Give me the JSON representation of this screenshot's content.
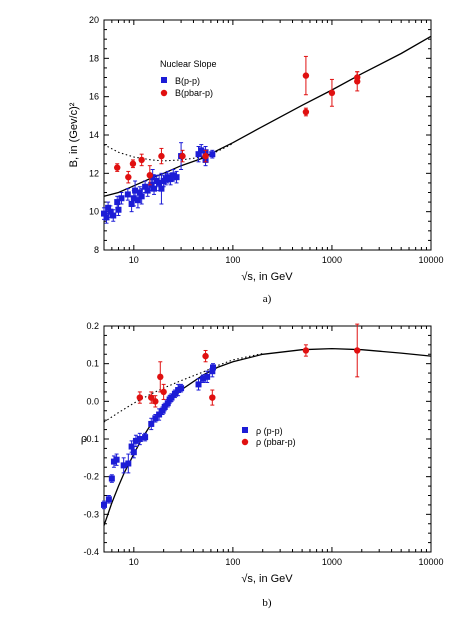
{
  "chart_data": [
    {
      "type": "scatter",
      "panel_caption": "a)",
      "xlabel": "√s, in GeV",
      "ylabel": "B, in (Gev/c)²",
      "xscale": "log",
      "xlim": [
        5,
        10000
      ],
      "ylim": [
        8,
        20
      ],
      "x_tick_labels": [
        "10",
        "100",
        "1000",
        "10000"
      ],
      "y_tick_labels": [
        "8",
        "10",
        "12",
        "14",
        "16",
        "18",
        "20"
      ],
      "legend": {
        "title": "Nuclear Slope",
        "placement": "upper-left"
      },
      "series": [
        {
          "name": "B(p-p)",
          "marker": "square",
          "color": "#1c1cd6",
          "points": [
            {
              "x": 5.0,
              "y": 9.9,
              "err": 0.3
            },
            {
              "x": 5.3,
              "y": 9.7,
              "err": 0.3
            },
            {
              "x": 5.5,
              "y": 10.2,
              "err": 0.3
            },
            {
              "x": 5.8,
              "y": 10.0,
              "err": 0.3
            },
            {
              "x": 6.2,
              "y": 9.8,
              "err": 0.3
            },
            {
              "x": 6.8,
              "y": 10.5,
              "err": 0.3
            },
            {
              "x": 7.0,
              "y": 10.1,
              "err": 0.3
            },
            {
              "x": 7.5,
              "y": 10.7,
              "err": 0.3
            },
            {
              "x": 8.7,
              "y": 10.9,
              "err": 0.3
            },
            {
              "x": 9.5,
              "y": 10.4,
              "err": 0.4
            },
            {
              "x": 10.0,
              "y": 10.7,
              "err": 0.4
            },
            {
              "x": 10.3,
              "y": 11.1,
              "err": 0.5
            },
            {
              "x": 11.0,
              "y": 10.6,
              "err": 0.4
            },
            {
              "x": 11.5,
              "y": 11.0,
              "err": 0.3
            },
            {
              "x": 12.0,
              "y": 10.8,
              "err": 0.4
            },
            {
              "x": 13.0,
              "y": 11.3,
              "err": 0.3
            },
            {
              "x": 13.8,
              "y": 11.1,
              "err": 0.3
            },
            {
              "x": 15.0,
              "y": 11.4,
              "err": 0.3
            },
            {
              "x": 15.5,
              "y": 11.8,
              "err": 0.4
            },
            {
              "x": 16.0,
              "y": 11.2,
              "err": 0.3
            },
            {
              "x": 17.0,
              "y": 11.6,
              "err": 0.3
            },
            {
              "x": 18.0,
              "y": 11.5,
              "err": 0.4
            },
            {
              "x": 19.0,
              "y": 11.2,
              "err": 0.8
            },
            {
              "x": 20.0,
              "y": 11.6,
              "err": 0.3
            },
            {
              "x": 21.0,
              "y": 11.7,
              "err": 0.3
            },
            {
              "x": 22.0,
              "y": 11.8,
              "err": 0.3
            },
            {
              "x": 23.5,
              "y": 11.7,
              "err": 0.3
            },
            {
              "x": 25.0,
              "y": 11.9,
              "err": 0.3
            },
            {
              "x": 27.0,
              "y": 11.8,
              "err": 0.3
            },
            {
              "x": 30.0,
              "y": 12.9,
              "err": 0.7
            },
            {
              "x": 45.0,
              "y": 13.0,
              "err": 0.4
            },
            {
              "x": 48.0,
              "y": 13.2,
              "err": 0.3
            },
            {
              "x": 53.0,
              "y": 13.1,
              "err": 0.3
            },
            {
              "x": 53.0,
              "y": 12.7,
              "err": 0.3
            },
            {
              "x": 62.0,
              "y": 13.0,
              "err": 0.2
            }
          ]
        },
        {
          "name": "B(pbar-p)",
          "marker": "circle",
          "color": "#e01010",
          "points": [
            {
              "x": 6.8,
              "y": 12.3,
              "err": 0.2
            },
            {
              "x": 8.8,
              "y": 11.8,
              "err": 0.3
            },
            {
              "x": 9.8,
              "y": 12.5,
              "err": 0.2
            },
            {
              "x": 12.0,
              "y": 12.7,
              "err": 0.3
            },
            {
              "x": 14.5,
              "y": 11.9,
              "err": 0.5
            },
            {
              "x": 19.0,
              "y": 12.9,
              "err": 0.4
            },
            {
              "x": 31.0,
              "y": 12.9,
              "err": 0.3
            },
            {
              "x": 53.0,
              "y": 12.9,
              "err": 0.3
            },
            {
              "x": 546.0,
              "y": 17.1,
              "err": 1.0
            },
            {
              "x": 546.0,
              "y": 15.2,
              "err": 0.2
            },
            {
              "x": 1000.0,
              "y": 16.2,
              "err": 0.7
            },
            {
              "x": 1800.0,
              "y": 16.8,
              "err": 0.5
            },
            {
              "x": 1800.0,
              "y": 17.0,
              "err": 0.3
            }
          ]
        }
      ],
      "curves": [
        {
          "style": "solid",
          "points": [
            [
              5,
              10.8
            ],
            [
              7,
              11.0
            ],
            [
              10,
              11.35
            ],
            [
              15,
              11.75
            ],
            [
              20,
              12.0
            ],
            [
              30,
              12.4
            ],
            [
              50,
              12.8
            ],
            [
              70,
              13.2
            ],
            [
              100,
              13.6
            ],
            [
              200,
              14.45
            ],
            [
              500,
              15.55
            ],
            [
              1000,
              16.35
            ],
            [
              2000,
              17.2
            ],
            [
              5000,
              18.25
            ],
            [
              10000,
              19.15
            ]
          ]
        },
        {
          "style": "dotted",
          "points": [
            [
              5,
              13.5
            ],
            [
              7,
              13.1
            ],
            [
              10,
              12.85
            ],
            [
              15,
              12.7
            ],
            [
              20,
              12.65
            ],
            [
              30,
              12.7
            ],
            [
              50,
              12.85
            ],
            [
              70,
              13.15
            ],
            [
              100,
              13.55
            ]
          ]
        }
      ]
    },
    {
      "type": "scatter",
      "panel_caption": "b)",
      "xlabel": "√s, in GeV",
      "ylabel": "ρ",
      "xscale": "log",
      "xlim": [
        5,
        10000
      ],
      "ylim": [
        -0.4,
        0.2
      ],
      "x_tick_labels": [
        "10",
        "100",
        "1000",
        "10000"
      ],
      "y_tick_labels": [
        "-0.4",
        "-0.3",
        "-0.2",
        "-0.1",
        "0.0",
        "0.1",
        "0.2"
      ],
      "legend": {
        "placement": "center-right"
      },
      "series": [
        {
          "name": "ρ (p-p)",
          "marker": "square",
          "color": "#1c1cd6",
          "points": [
            {
              "x": 5.0,
              "y": -0.275,
              "err": 0.01
            },
            {
              "x": 5.6,
              "y": -0.26,
              "err": 0.01
            },
            {
              "x": 6.0,
              "y": -0.205,
              "err": 0.01
            },
            {
              "x": 6.3,
              "y": -0.16,
              "err": 0.015
            },
            {
              "x": 6.7,
              "y": -0.155,
              "err": 0.015
            },
            {
              "x": 7.9,
              "y": -0.17,
              "err": 0.02
            },
            {
              "x": 8.8,
              "y": -0.165,
              "err": 0.025
            },
            {
              "x": 9.5,
              "y": -0.12,
              "err": 0.015
            },
            {
              "x": 10.0,
              "y": -0.135,
              "err": 0.015
            },
            {
              "x": 10.5,
              "y": -0.105,
              "err": 0.015
            },
            {
              "x": 11.5,
              "y": -0.1,
              "err": 0.015
            },
            {
              "x": 13.0,
              "y": -0.095,
              "err": 0.01
            },
            {
              "x": 15.0,
              "y": -0.06,
              "err": 0.015
            },
            {
              "x": 16.5,
              "y": -0.045,
              "err": 0.01
            },
            {
              "x": 18.0,
              "y": -0.035,
              "err": 0.015
            },
            {
              "x": 19.5,
              "y": -0.025,
              "err": 0.01
            },
            {
              "x": 20.5,
              "y": -0.015,
              "err": 0.01
            },
            {
              "x": 22.0,
              "y": -0.005,
              "err": 0.01
            },
            {
              "x": 23.0,
              "y": 0.005,
              "err": 0.01
            },
            {
              "x": 24.0,
              "y": 0.01,
              "err": 0.01
            },
            {
              "x": 26.0,
              "y": 0.02,
              "err": 0.01
            },
            {
              "x": 28.0,
              "y": 0.03,
              "err": 0.015
            },
            {
              "x": 30.0,
              "y": 0.035,
              "err": 0.01
            },
            {
              "x": 45.0,
              "y": 0.045,
              "err": 0.015
            },
            {
              "x": 50.0,
              "y": 0.06,
              "err": 0.01
            },
            {
              "x": 55.0,
              "y": 0.065,
              "err": 0.015
            },
            {
              "x": 62.0,
              "y": 0.08,
              "err": 0.015
            },
            {
              "x": 63.0,
              "y": 0.09,
              "err": 0.01
            }
          ]
        },
        {
          "name": "ρ (pbar-p)",
          "marker": "circle",
          "color": "#e01010",
          "points": [
            {
              "x": 11.5,
              "y": 0.01,
              "err": 0.015
            },
            {
              "x": 15.0,
              "y": 0.01,
              "err": 0.015
            },
            {
              "x": 16.5,
              "y": 0.0,
              "err": 0.015
            },
            {
              "x": 18.5,
              "y": 0.065,
              "err": 0.04
            },
            {
              "x": 20.0,
              "y": 0.025,
              "err": 0.02
            },
            {
              "x": 53.0,
              "y": 0.12,
              "err": 0.015
            },
            {
              "x": 62.0,
              "y": 0.01,
              "err": 0.02
            },
            {
              "x": 546.0,
              "y": 0.135,
              "err": 0.015
            },
            {
              "x": 1800.0,
              "y": 0.135,
              "err": 0.07
            }
          ]
        }
      ],
      "curves": [
        {
          "style": "solid",
          "points": [
            [
              5,
              -0.33
            ],
            [
              6,
              -0.27
            ],
            [
              7,
              -0.225
            ],
            [
              8,
              -0.19
            ],
            [
              10,
              -0.14
            ],
            [
              12,
              -0.1
            ],
            [
              15,
              -0.06
            ],
            [
              20,
              -0.02
            ],
            [
              30,
              0.03
            ],
            [
              50,
              0.07
            ],
            [
              70,
              0.09
            ],
            [
              100,
              0.105
            ],
            [
              200,
              0.125
            ],
            [
              500,
              0.137
            ],
            [
              1000,
              0.14
            ],
            [
              2000,
              0.137
            ],
            [
              5000,
              0.128
            ],
            [
              10000,
              0.12
            ]
          ]
        },
        {
          "style": "dotted",
          "points": [
            [
              5,
              -0.055
            ],
            [
              7,
              -0.03
            ],
            [
              10,
              -0.005
            ],
            [
              15,
              0.02
            ],
            [
              20,
              0.035
            ],
            [
              30,
              0.055
            ],
            [
              50,
              0.078
            ],
            [
              70,
              0.095
            ],
            [
              100,
              0.11
            ],
            [
              200,
              0.127
            ]
          ]
        }
      ]
    }
  ]
}
